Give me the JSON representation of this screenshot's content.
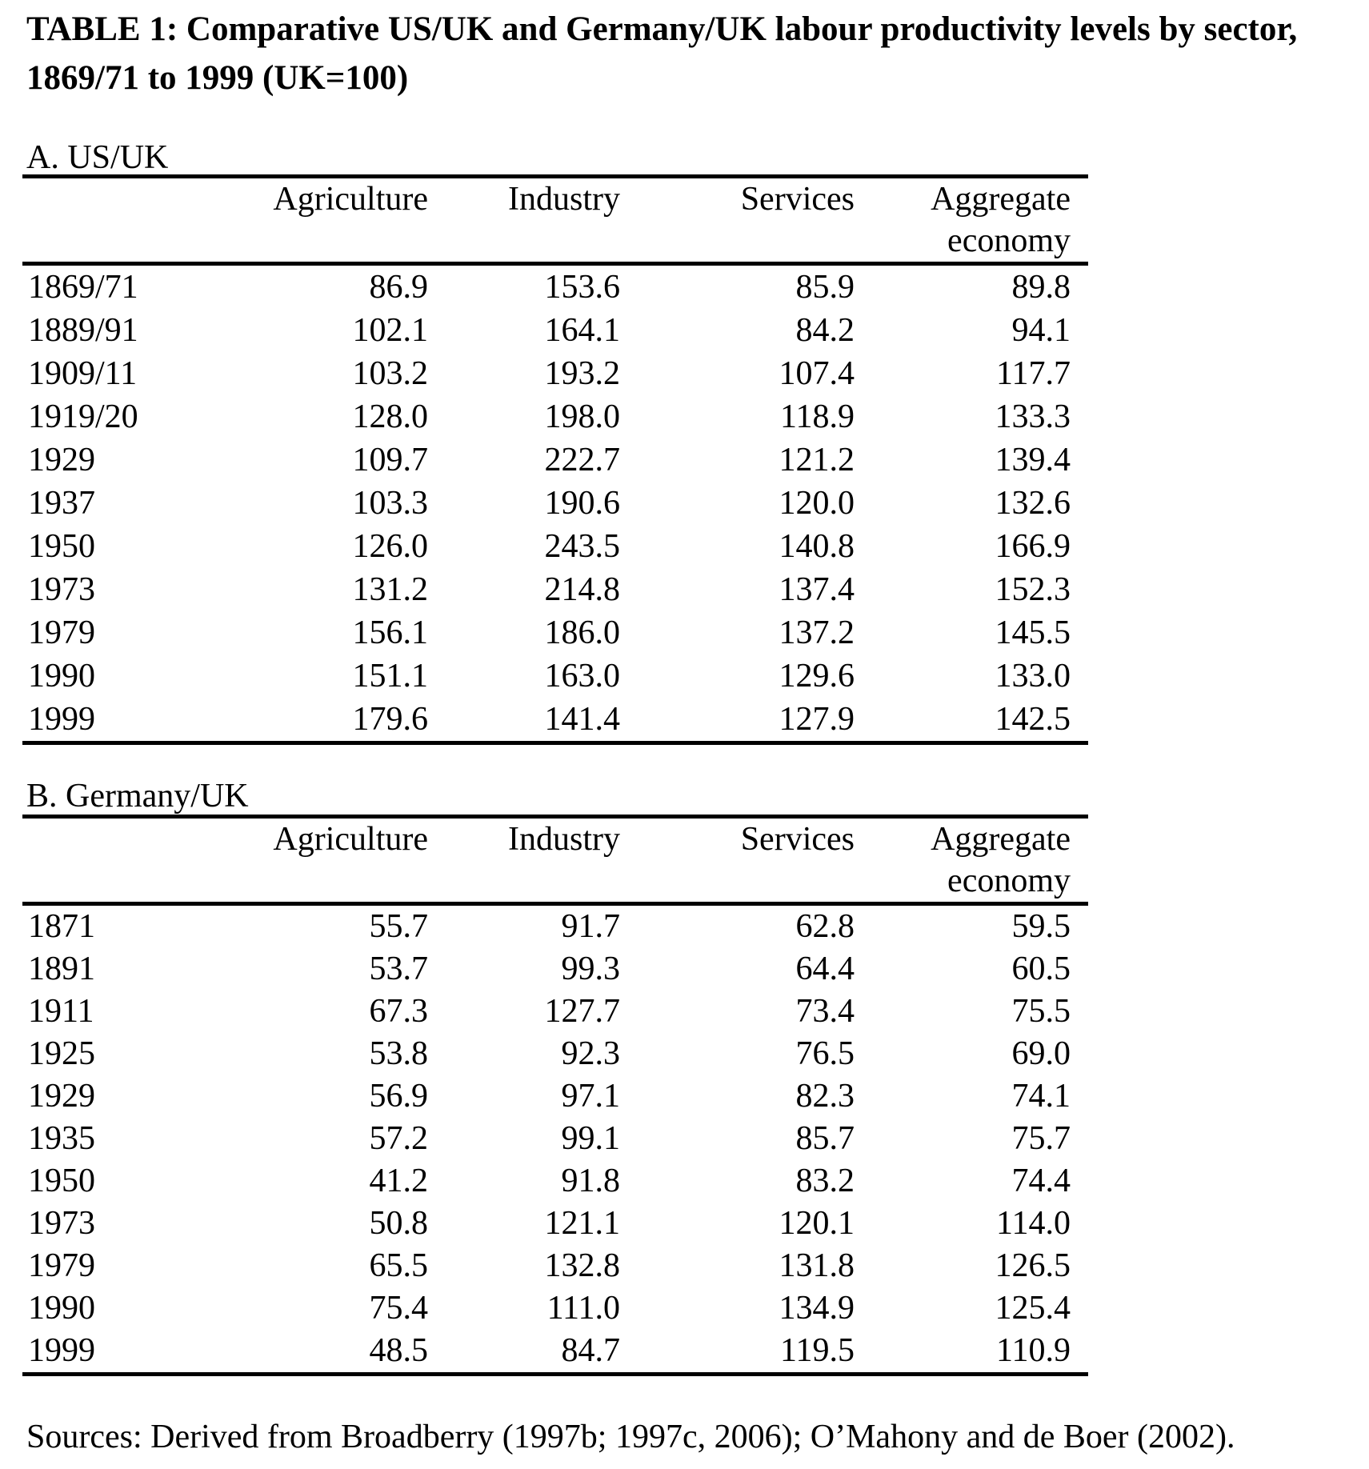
{
  "title": {
    "line1": "TABLE 1: Comparative US/UK and Germany/UK labour productivity levels by sector,",
    "line2": "1869/71 to 1999 (UK=100)"
  },
  "panels": [
    {
      "heading": "A. US/UK",
      "header": {
        "agriculture": "Agriculture",
        "industry": "Industry",
        "services": "Services",
        "aggregate_line1": "Aggregate",
        "aggregate_line2": "economy"
      },
      "rows": [
        [
          "1869/71",
          "86.9",
          "153.6",
          "85.9",
          "89.8"
        ],
        [
          "1889/91",
          "102.1",
          "164.1",
          "84.2",
          "94.1"
        ],
        [
          "1909/11",
          "103.2",
          "193.2",
          "107.4",
          "117.7"
        ],
        [
          "1919/20",
          "128.0",
          "198.0",
          "118.9",
          "133.3"
        ],
        [
          "1929",
          "109.7",
          "222.7",
          "121.2",
          "139.4"
        ],
        [
          "1937",
          "103.3",
          "190.6",
          "120.0",
          "132.6"
        ],
        [
          "1950",
          "126.0",
          "243.5",
          "140.8",
          "166.9"
        ],
        [
          "1973",
          "131.2",
          "214.8",
          "137.4",
          "152.3"
        ],
        [
          "1979",
          "156.1",
          "186.0",
          "137.2",
          "145.5"
        ],
        [
          "1990",
          "151.1",
          "163.0",
          "129.6",
          "133.0"
        ],
        [
          "1999",
          "179.6",
          "141.4",
          "127.9",
          "142.5"
        ]
      ]
    },
    {
      "heading": "B. Germany/UK",
      "header": {
        "agriculture": "Agriculture",
        "industry": "Industry",
        "services": "Services",
        "aggregate_line1": "Aggregate",
        "aggregate_line2": "economy"
      },
      "rows": [
        [
          "1871",
          "55.7",
          "91.7",
          "62.8",
          "59.5"
        ],
        [
          "1891",
          "53.7",
          "99.3",
          "64.4",
          "60.5"
        ],
        [
          "1911",
          "67.3",
          "127.7",
          "73.4",
          "75.5"
        ],
        [
          "1925",
          "53.8",
          "92.3",
          "76.5",
          "69.0"
        ],
        [
          "1929",
          "56.9",
          "97.1",
          "82.3",
          "74.1"
        ],
        [
          "1935",
          "57.2",
          "99.1",
          "85.7",
          "75.7"
        ],
        [
          "1950",
          "41.2",
          "91.8",
          "83.2",
          "74.4"
        ],
        [
          "1973",
          "50.8",
          "121.1",
          "120.1",
          "114.0"
        ],
        [
          "1979",
          "65.5",
          "132.8",
          "131.8",
          "126.5"
        ],
        [
          "1990",
          "75.4",
          "111.0",
          "134.9",
          "125.4"
        ],
        [
          "1999",
          "48.5",
          "84.7",
          "119.5",
          "110.9"
        ]
      ]
    }
  ],
  "source_note": "Sources: Derived from Broadberry (1997b; 1997c, 2006); O’Mahony and de Boer (2002)."
}
